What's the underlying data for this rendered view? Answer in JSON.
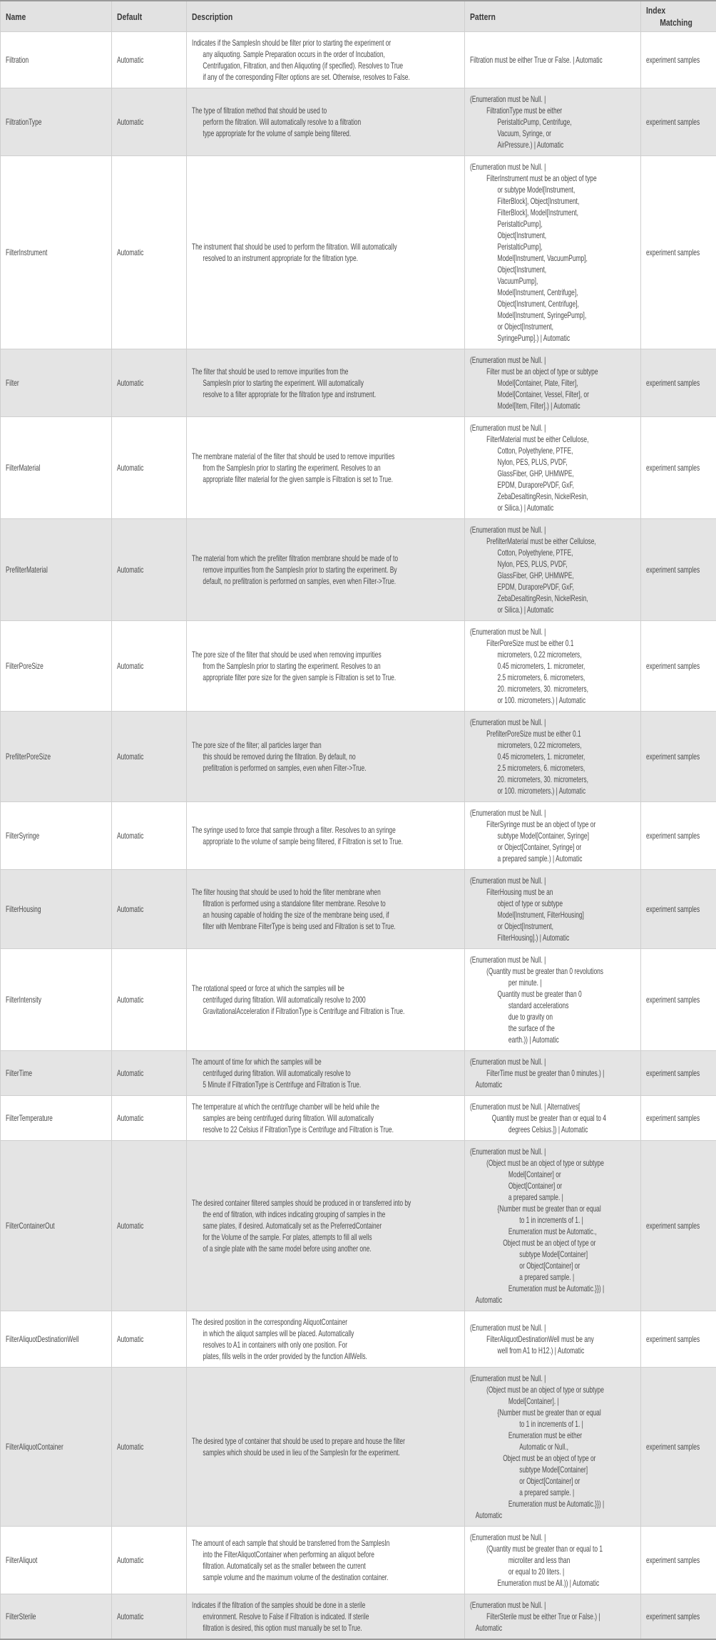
{
  "headers": {
    "name": "Name",
    "default": "Default",
    "description": "Description",
    "pattern": "Pattern",
    "index_1": "Index",
    "index_2": "Matching"
  },
  "rows": [
    {
      "name": "Filtration",
      "default": "Automatic",
      "index": "experiment samples",
      "description": [
        "Indicates if the SamplesIn should be filter prior to starting the experiment or",
        "any aliquoting. Sample Preparation occurs in the order of Incubation,",
        "Centrifugation, Filtration, and then Aliquoting (if specified).  Resolves to True",
        "if any of the corresponding Filter options are set. Otherwise, resolves to False."
      ],
      "pattern": [
        {
          "lvl": 0,
          "t": "Filtration must be either True or False.  | Automatic"
        }
      ]
    },
    {
      "name": "FiltrationType",
      "default": "Automatic",
      "index": "experiment samples",
      "description": [
        "The type of filtration method that should be used to",
        "perform the filtration.  Will automatically resolve to a filtration",
        "type appropriate for the volume of sample being filtered."
      ],
      "pattern": [
        {
          "lvl": 0,
          "t": "(Enumeration must be Null.  |"
        },
        {
          "lvl": 3,
          "t": "FiltrationType must be either"
        },
        {
          "lvl": 5,
          "t": "PeristalticPump, Centrifuge,"
        },
        {
          "lvl": 5,
          "t": "Vacuum, Syringe, or"
        },
        {
          "lvl": 5,
          "t": "AirPressure.) | Automatic"
        }
      ]
    },
    {
      "name": "FilterInstrument",
      "default": "Automatic",
      "index": "experiment samples",
      "description": [
        "The instrument that should be used to perform the filtration.  Will automatically",
        "resolved to an instrument appropriate for the filtration type."
      ],
      "pattern": [
        {
          "lvl": 0,
          "t": "(Enumeration must be Null.  |"
        },
        {
          "lvl": 3,
          "t": "FilterInstrument must be an object of type"
        },
        {
          "lvl": 5,
          "t": "or subtype Model[Instrument,"
        },
        {
          "lvl": 5,
          "t": "FilterBlock], Object[Instrument,"
        },
        {
          "lvl": 5,
          "t": "FilterBlock], Model[Instrument,"
        },
        {
          "lvl": 5,
          "t": "PeristalticPump],"
        },
        {
          "lvl": 5,
          "t": "Object[Instrument,"
        },
        {
          "lvl": 5,
          "t": "PeristalticPump],"
        },
        {
          "lvl": 5,
          "t": "Model[Instrument, VacuumPump],"
        },
        {
          "lvl": 5,
          "t": "Object[Instrument,"
        },
        {
          "lvl": 5,
          "t": "VacuumPump],"
        },
        {
          "lvl": 5,
          "t": "Model[Instrument, Centrifuge],"
        },
        {
          "lvl": 5,
          "t": "Object[Instrument, Centrifuge],"
        },
        {
          "lvl": 5,
          "t": "Model[Instrument, SyringePump],"
        },
        {
          "lvl": 5,
          "t": "or Object[Instrument,"
        },
        {
          "lvl": 5,
          "t": "SyringePump].) | Automatic"
        }
      ]
    },
    {
      "name": "Filter",
      "default": "Automatic",
      "index": "experiment samples",
      "description": [
        "The filter that should be used to remove impurities from the",
        "SamplesIn prior to starting the experiment.  Will automatically",
        "resolve to a filter appropriate for the filtration type and instrument."
      ],
      "pattern": [
        {
          "lvl": 0,
          "t": "(Enumeration must be Null.  |"
        },
        {
          "lvl": 3,
          "t": "Filter must be an object of type or subtype"
        },
        {
          "lvl": 5,
          "t": "Model[Container, Plate, Filter],"
        },
        {
          "lvl": 5,
          "t": "Model[Container, Vessel, Filter], or"
        },
        {
          "lvl": 5,
          "t": "Model[Item, Filter].) | Automatic"
        }
      ]
    },
    {
      "name": "FilterMaterial",
      "default": "Automatic",
      "index": "experiment samples",
      "description": [
        "The membrane material of the filter that should be used to remove impurities",
        "from the SamplesIn prior to starting the experiment.  Resolves to an",
        "appropriate filter material for the given sample is Filtration is set to True."
      ],
      "pattern": [
        {
          "lvl": 0,
          "t": "(Enumeration must be Null.  |"
        },
        {
          "lvl": 3,
          "t": "FilterMaterial must be either Cellulose,"
        },
        {
          "lvl": 5,
          "t": "Cotton, Polyethylene, PTFE,"
        },
        {
          "lvl": 5,
          "t": "Nylon, PES, PLUS, PVDF,"
        },
        {
          "lvl": 5,
          "t": "GlassFiber, GHP, UHMWPE,"
        },
        {
          "lvl": 5,
          "t": "EPDM, DuraporePVDF, GxF,"
        },
        {
          "lvl": 5,
          "t": "ZebaDesaltingResin, NickelResin,"
        },
        {
          "lvl": 5,
          "t": "or Silica.) | Automatic"
        }
      ]
    },
    {
      "name": "PrefilterMaterial",
      "default": "Automatic",
      "index": "experiment samples",
      "description": [
        "The material from which the prefilter filtration membrane should be made of to",
        "remove impurities from the SamplesIn prior to starting the experiment.  By",
        "default, no prefiltration is performed on samples, even when Filter->True."
      ],
      "pattern": [
        {
          "lvl": 0,
          "t": "(Enumeration must be Null.  |"
        },
        {
          "lvl": 3,
          "t": "PrefilterMaterial must be either Cellulose,"
        },
        {
          "lvl": 5,
          "t": "Cotton, Polyethylene, PTFE,"
        },
        {
          "lvl": 5,
          "t": "Nylon, PES, PLUS, PVDF,"
        },
        {
          "lvl": 5,
          "t": "GlassFiber, GHP, UHMWPE,"
        },
        {
          "lvl": 5,
          "t": "EPDM, DuraporePVDF, GxF,"
        },
        {
          "lvl": 5,
          "t": "ZebaDesaltingResin, NickelResin,"
        },
        {
          "lvl": 5,
          "t": "or Silica.) | Automatic"
        }
      ]
    },
    {
      "name": "FilterPoreSize",
      "default": "Automatic",
      "index": "experiment samples",
      "description": [
        "The pore size of the filter that should be used when removing impurities",
        "from the SamplesIn prior to starting the experiment.  Resolves to an",
        "appropriate filter pore size for the given sample is Filtration is set to True."
      ],
      "pattern": [
        {
          "lvl": 0,
          "t": "(Enumeration must be Null.  |"
        },
        {
          "lvl": 3,
          "t": "FilterPoreSize must be either 0.1"
        },
        {
          "lvl": 5,
          "t": "micrometers, 0.22 micrometers,"
        },
        {
          "lvl": 5,
          "t": "0.45 micrometers, 1. micrometer,"
        },
        {
          "lvl": 5,
          "t": "2.5 micrometers, 6. micrometers,"
        },
        {
          "lvl": 5,
          "t": "20. micrometers, 30. micrometers,"
        },
        {
          "lvl": 5,
          "t": "or 100. micrometers.) | Automatic"
        }
      ]
    },
    {
      "name": "PrefilterPoreSize",
      "default": "Automatic",
      "index": "experiment samples",
      "description": [
        "The pore size of the filter; all particles larger than",
        "this should be removed during the filtration.  By default, no",
        "prefiltration is performed on samples, even when Filter->True."
      ],
      "pattern": [
        {
          "lvl": 0,
          "t": "(Enumeration must be Null.  |"
        },
        {
          "lvl": 3,
          "t": "PrefilterPoreSize must be either 0.1"
        },
        {
          "lvl": 5,
          "t": "micrometers, 0.22 micrometers,"
        },
        {
          "lvl": 5,
          "t": "0.45 micrometers, 1. micrometer,"
        },
        {
          "lvl": 5,
          "t": "2.5 micrometers, 6. micrometers,"
        },
        {
          "lvl": 5,
          "t": "20. micrometers, 30. micrometers,"
        },
        {
          "lvl": 5,
          "t": "or 100. micrometers.) | Automatic"
        }
      ]
    },
    {
      "name": "FilterSyringe",
      "default": "Automatic",
      "index": "experiment samples",
      "description": [
        "The syringe used to force that sample through a filter.  Resolves to an syringe",
        "appropriate to the volume of sample being filtered, if Filtration is set to True."
      ],
      "pattern": [
        {
          "lvl": 0,
          "t": "(Enumeration must be Null.  |"
        },
        {
          "lvl": 3,
          "t": "FilterSyringe must be an object of type or"
        },
        {
          "lvl": 5,
          "t": "subtype Model[Container, Syringe]"
        },
        {
          "lvl": 5,
          "t": "or Object[Container, Syringe] or"
        },
        {
          "lvl": 5,
          "t": "a prepared sample.) | Automatic"
        }
      ]
    },
    {
      "name": "FilterHousing",
      "default": "Automatic",
      "index": "experiment samples",
      "description": [
        "The filter housing that should be used to hold the filter membrane when",
        "filtration is performed using a standalone filter membrane.  Resolve to",
        "an housing capable of holding the size of the membrane being used, if",
        "filter with Membrane FilterType is being used and Filtration is set to True."
      ],
      "pattern": [
        {
          "lvl": 0,
          "t": "(Enumeration must be Null.  |"
        },
        {
          "lvl": 3,
          "t": "FilterHousing must be an"
        },
        {
          "lvl": 5,
          "t": "object of type or subtype"
        },
        {
          "lvl": 5,
          "t": "Model[Instrument, FilterHousing]"
        },
        {
          "lvl": 5,
          "t": "or Object[Instrument,"
        },
        {
          "lvl": 5,
          "t": "FilterHousing].) | Automatic"
        }
      ]
    },
    {
      "name": "FilterIntensity",
      "default": "Automatic",
      "index": "experiment samples",
      "description": [
        "The rotational speed or force at which the samples will be",
        "centrifuged during filtration.  Will automatically resolve to 2000",
        "GravitationalAcceleration if FiltrationType is Centrifuge and Filtration is True."
      ],
      "pattern": [
        {
          "lvl": 0,
          "t": "(Enumeration must be Null.  |"
        },
        {
          "lvl": 3,
          "t": "(Quantity must be greater than 0 revolutions"
        },
        {
          "lvl": 7,
          "t": "per minute.  |"
        },
        {
          "lvl": 5,
          "t": "Quantity must be greater than 0"
        },
        {
          "lvl": 7,
          "t": "standard accelerations"
        },
        {
          "lvl": 7,
          "t": "due to gravity on"
        },
        {
          "lvl": 7,
          "t": "the surface of the"
        },
        {
          "lvl": 7,
          "t": "earth.)) | Automatic"
        }
      ]
    },
    {
      "name": "FilterTime",
      "default": "Automatic",
      "index": "experiment samples",
      "description": [
        "The amount of time for which the samples will be",
        "centrifuged during filtration.  Will automatically resolve to",
        "5 Minute if FiltrationType is Centrifuge and Filtration is True."
      ],
      "pattern": [
        {
          "lvl": 0,
          "t": "(Enumeration must be Null.  |"
        },
        {
          "lvl": 3,
          "t": "FilterTime must be greater than 0 minutes.) |"
        },
        {
          "lvl": 1,
          "t": "Automatic"
        }
      ]
    },
    {
      "name": "FilterTemperature",
      "default": "Automatic",
      "index": "experiment samples",
      "description": [
        "The temperature at which the centrifuge chamber will be held while the",
        "samples are being centrifuged during filtration.  Will automatically",
        "resolve to 22 Celsius if FiltrationType is Centrifuge and Filtration is True."
      ],
      "pattern": [
        {
          "lvl": 0,
          "t": "(Enumeration must be Null.  | Alternatives["
        },
        {
          "lvl": 4,
          "t": "Quantity must be greater than or equal to 4"
        },
        {
          "lvl": 7,
          "t": "degrees Celsius.]) | Automatic"
        }
      ]
    },
    {
      "name": "FilterContainerOut",
      "default": "Automatic",
      "index": "experiment samples",
      "description": [
        "The desired container filtered samples should be produced in or transferred into by",
        "the end of filtration, with indices indicating grouping of samples in the",
        "same plates, if desired.  Automatically set as the PreferredContainer",
        "for the Volume of the sample. For plates, attempts to fill all wells",
        "of a single plate with the same model before using another one."
      ],
      "pattern": [
        {
          "lvl": 0,
          "t": "(Enumeration must be Null.  |"
        },
        {
          "lvl": 3,
          "t": "(Object must be an object of type or subtype"
        },
        {
          "lvl": 7,
          "t": "Model[Container] or"
        },
        {
          "lvl": 7,
          "t": "Object[Container] or"
        },
        {
          "lvl": 7,
          "t": "a prepared sample.  |"
        },
        {
          "lvl": 5,
          "t": "{Number must be greater than or equal"
        },
        {
          "lvl": 9,
          "t": "to 1 in increments of 1.  |"
        },
        {
          "lvl": 7,
          "t": "Enumeration must be Automatic.,"
        },
        {
          "lvl": 6,
          "t": "Object must be an object of type or"
        },
        {
          "lvl": 9,
          "t": "subtype Model[Container]"
        },
        {
          "lvl": 9,
          "t": "or Object[Container] or"
        },
        {
          "lvl": 9,
          "t": "a prepared sample.  |"
        },
        {
          "lvl": 7,
          "t": "Enumeration must be Automatic.}}) |"
        },
        {
          "lvl": 1,
          "t": "Automatic"
        }
      ]
    },
    {
      "name": "FilterAliquotDestinationWell",
      "default": "Automatic",
      "index": "experiment samples",
      "description": [
        "The desired position in the corresponding AliquotContainer",
        "in which the aliquot samples will be placed.  Automatically",
        "resolves to A1 in containers with only one position.  For",
        "plates, fills wells in the order provided by the function AllWells."
      ],
      "pattern": [
        {
          "lvl": 0,
          "t": "(Enumeration must be Null.  |"
        },
        {
          "lvl": 3,
          "t": "FilterAliquotDestinationWell must be any"
        },
        {
          "lvl": 5,
          "t": "well from A1 to H12.) | Automatic"
        }
      ]
    },
    {
      "name": "FilterAliquotContainer",
      "default": "Automatic",
      "index": "experiment samples",
      "description": [
        "The desired type of container that should be used to prepare and house the filter",
        "samples which should be used in lieu of the SamplesIn for the experiment."
      ],
      "pattern": [
        {
          "lvl": 0,
          "t": "(Enumeration must be Null.  |"
        },
        {
          "lvl": 3,
          "t": "(Object must be an object of type or subtype"
        },
        {
          "lvl": 7,
          "t": "Model[Container].  |"
        },
        {
          "lvl": 5,
          "t": "{Number must be greater than or equal"
        },
        {
          "lvl": 9,
          "t": "to 1 in increments of 1.  |"
        },
        {
          "lvl": 7,
          "t": "Enumeration must be either"
        },
        {
          "lvl": 9,
          "t": "Automatic or Null.,"
        },
        {
          "lvl": 6,
          "t": "Object must be an object of type or"
        },
        {
          "lvl": 9,
          "t": "subtype Model[Container]"
        },
        {
          "lvl": 9,
          "t": "or Object[Container] or"
        },
        {
          "lvl": 9,
          "t": "a prepared sample.  |"
        },
        {
          "lvl": 7,
          "t": "Enumeration must be Automatic.}}) |"
        },
        {
          "lvl": 1,
          "t": "Automatic"
        }
      ]
    },
    {
      "name": "FilterAliquot",
      "default": "Automatic",
      "index": "experiment samples",
      "description": [
        "The amount of each sample that should be transferred from the SamplesIn",
        "into the FilterAliquotContainer when performing an aliquot before",
        "filtration.  Automatically set as the smaller between the current",
        "sample volume and the maximum volume of the destination container."
      ],
      "pattern": [
        {
          "lvl": 0,
          "t": "(Enumeration must be Null.  |"
        },
        {
          "lvl": 3,
          "t": "(Quantity must be greater than or equal to 1"
        },
        {
          "lvl": 7,
          "t": "microliter and less than"
        },
        {
          "lvl": 7,
          "t": "or equal to 20 liters.  |"
        },
        {
          "lvl": 5,
          "t": "Enumeration must be All.)) | Automatic"
        }
      ]
    },
    {
      "name": "FilterSterile",
      "default": "Automatic",
      "index": "experiment samples",
      "description": [
        "Indicates if the filtration of the samples should be done in a sterile",
        "environment.  Resolve to False if Filtration is indicated. If sterile",
        "filtration is desired, this option must manually be set to True."
      ],
      "pattern": [
        {
          "lvl": 0,
          "t": "(Enumeration must be Null.  |"
        },
        {
          "lvl": 3,
          "t": "FilterSterile must be either True or False.) |"
        },
        {
          "lvl": 1,
          "t": "Automatic"
        }
      ]
    }
  ]
}
